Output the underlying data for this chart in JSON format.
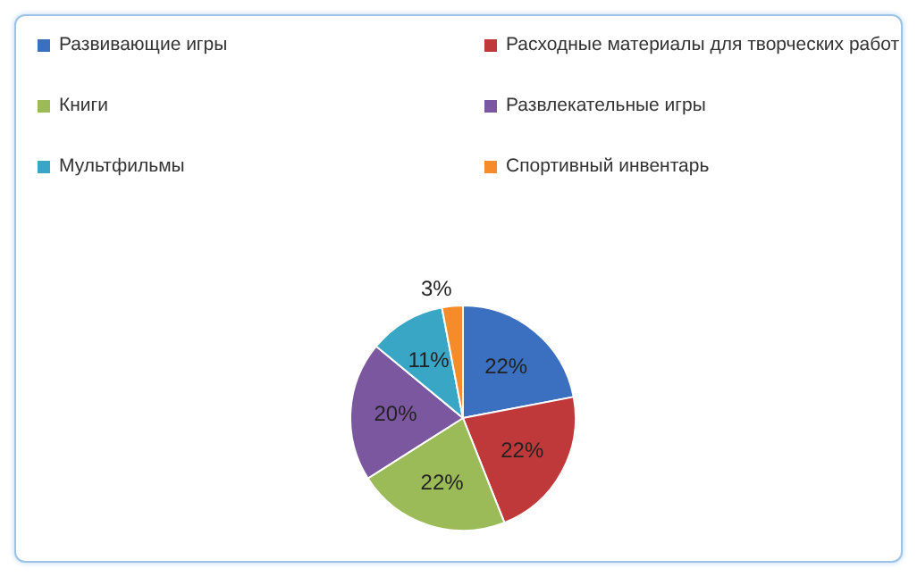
{
  "chart_data": {
    "type": "pie",
    "categories": [
      "Развивающие игры",
      "Расходные материалы для творческих работ",
      "Книги",
      "Развлекательные игры",
      "Мультфильмы",
      "Спортивный инвентарь"
    ],
    "values": [
      22,
      22,
      22,
      20,
      11,
      3
    ],
    "colors": [
      "#3b6fbf",
      "#c0393a",
      "#9bbb59",
      "#7b57a0",
      "#3aa6c6",
      "#f58b2a"
    ],
    "value_labels": [
      "22%",
      "22%",
      "22%",
      "20%",
      "11%",
      "3%"
    ],
    "legend": "top"
  }
}
